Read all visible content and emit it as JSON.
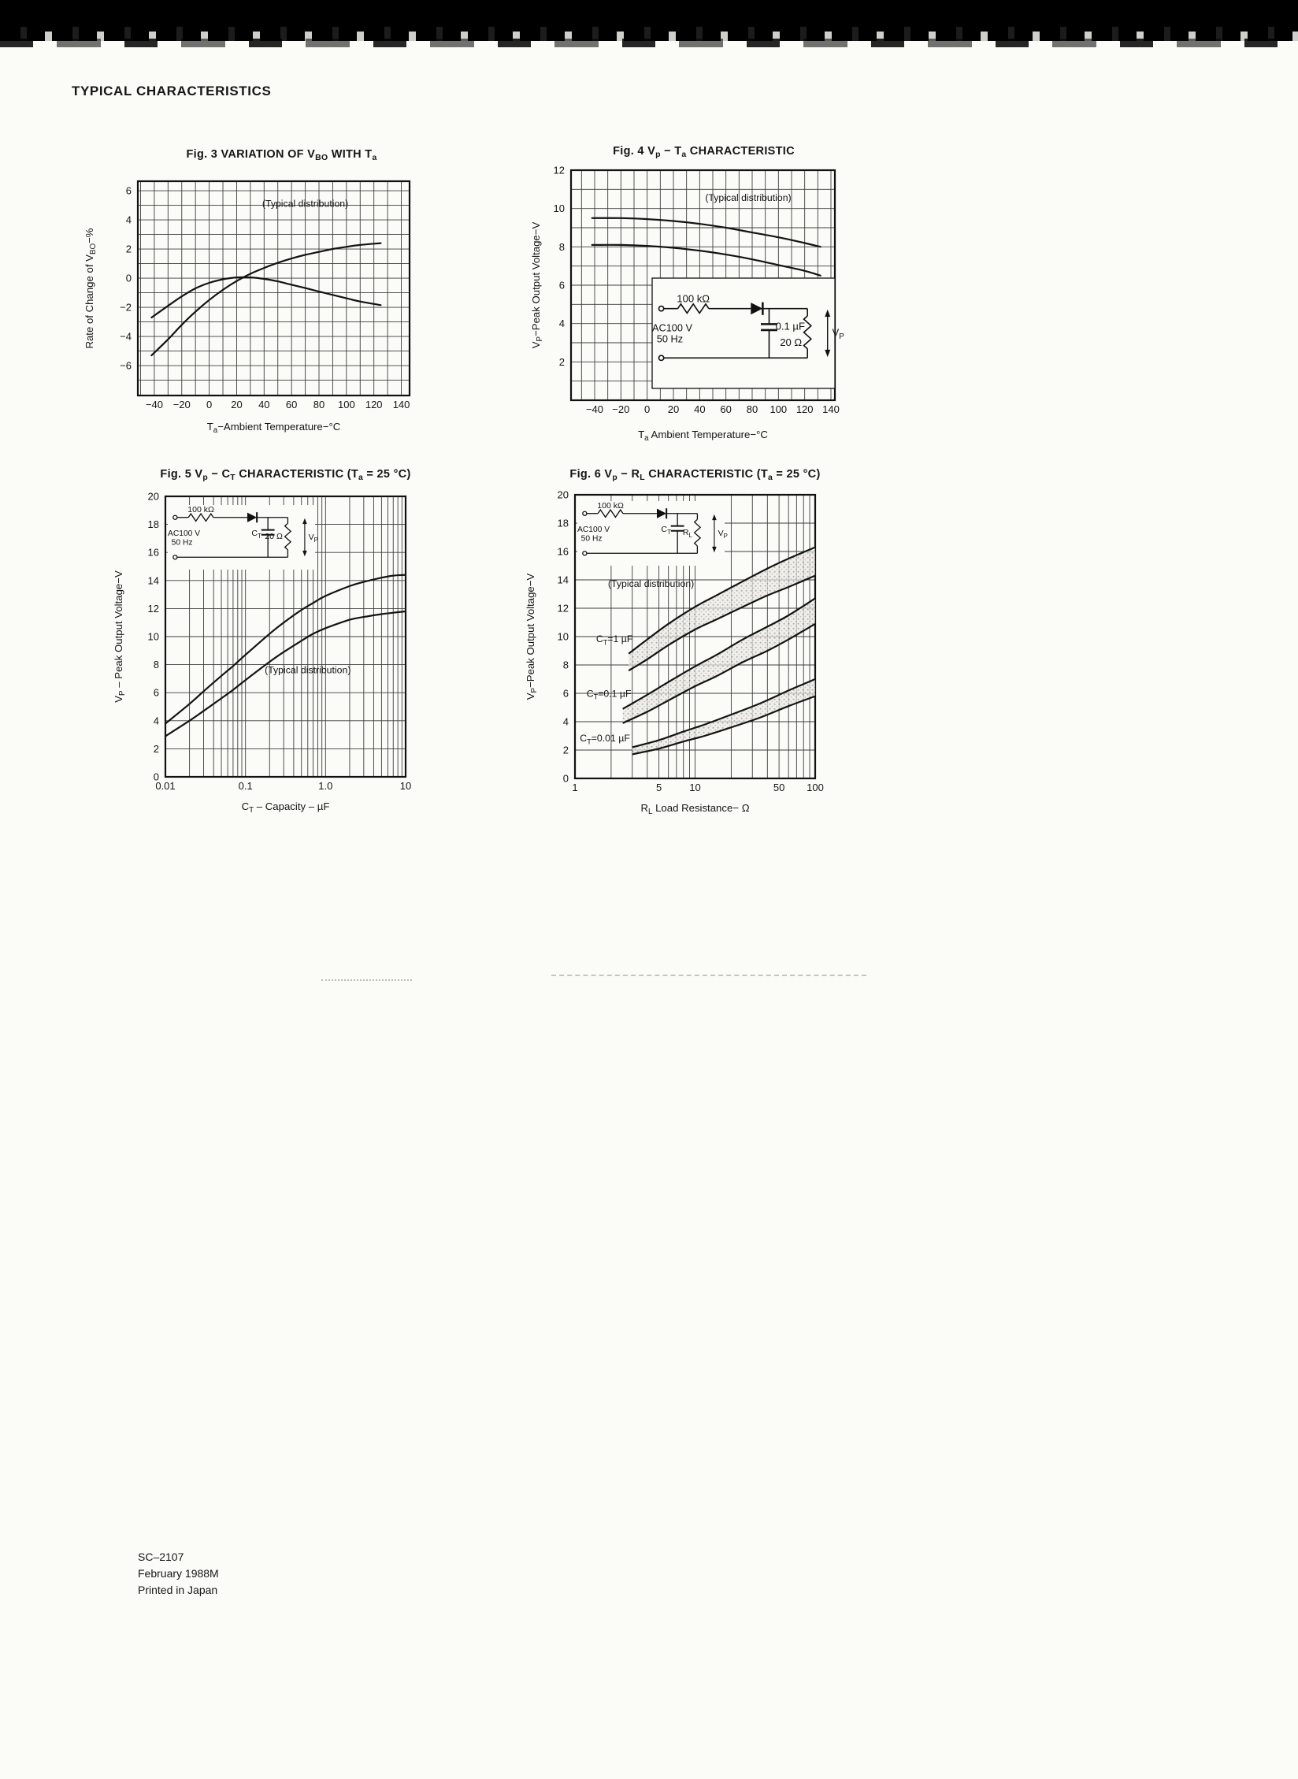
{
  "page": {
    "header": "TYPICAL CHARACTERISTICS",
    "footer_lines": [
      "SC–2107",
      "February 1988M",
      "Printed in Japan"
    ]
  },
  "chart_data": [
    {
      "id": "fig3",
      "type": "line",
      "title": "Fig. 3   VARIATION OF V~BO~ WITH T~a~",
      "xlabel": "T~a~−Ambient Temperature−°C",
      "ylabel": "Rate of Change of V~BO~−%",
      "x": {
        "scale": "linear",
        "min": -52,
        "max": 146,
        "minor_step": 10,
        "ticks": [
          {
            "v": -40,
            "label": "−40"
          },
          {
            "v": -20,
            "label": "−20"
          },
          {
            "v": 0,
            "label": "0"
          },
          {
            "v": 20,
            "label": "20"
          },
          {
            "v": 40,
            "label": "40"
          },
          {
            "v": 60,
            "label": "60"
          },
          {
            "v": 80,
            "label": "80"
          },
          {
            "v": 100,
            "label": "100"
          },
          {
            "v": 120,
            "label": "120"
          },
          {
            "v": 140,
            "label": "140"
          }
        ]
      },
      "y": {
        "min": -8.05,
        "max": 6.65,
        "grid_step": 1,
        "ticks": [
          {
            "v": 6,
            "label": "6"
          },
          {
            "v": 4,
            "label": "4"
          },
          {
            "v": 2,
            "label": "2"
          },
          {
            "v": 0,
            "label": "0"
          },
          {
            "v": -2,
            "label": "−2"
          },
          {
            "v": -4,
            "label": "−4"
          },
          {
            "v": -6,
            "label": "−6"
          }
        ]
      },
      "annotations": [
        {
          "text": "(Typical distribution)",
          "x": 70,
          "y": 4.9
        }
      ],
      "series": [
        {
          "name": "distribution-upper-rising",
          "points": [
            [
              -42,
              -5.3
            ],
            [
              -30,
              -4.2
            ],
            [
              -20,
              -3.2
            ],
            [
              -10,
              -2.3
            ],
            [
              0,
              -1.5
            ],
            [
              10,
              -0.8
            ],
            [
              20,
              -0.2
            ],
            [
              30,
              0.3
            ],
            [
              40,
              0.7
            ],
            [
              50,
              1.05
            ],
            [
              60,
              1.35
            ],
            [
              70,
              1.6
            ],
            [
              80,
              1.8
            ],
            [
              90,
              2.0
            ],
            [
              100,
              2.15
            ],
            [
              110,
              2.28
            ],
            [
              125,
              2.4
            ]
          ]
        },
        {
          "name": "distribution-lower-falling",
          "points": [
            [
              -42,
              -2.7
            ],
            [
              -30,
              -1.9
            ],
            [
              -20,
              -1.25
            ],
            [
              -10,
              -0.7
            ],
            [
              0,
              -0.32
            ],
            [
              10,
              -0.08
            ],
            [
              20,
              0.05
            ],
            [
              30,
              0.05
            ],
            [
              40,
              -0.05
            ],
            [
              50,
              -0.22
            ],
            [
              60,
              -0.45
            ],
            [
              70,
              -0.68
            ],
            [
              80,
              -0.92
            ],
            [
              90,
              -1.15
            ],
            [
              100,
              -1.38
            ],
            [
              110,
              -1.6
            ],
            [
              125,
              -1.85
            ]
          ]
        }
      ]
    },
    {
      "id": "fig4",
      "type": "line",
      "title": "Fig. 4   V~p~ − T~a~ CHARACTERISTIC",
      "xlabel": "T~a~   Ambient Temperature−°C",
      "ylabel": "V~P~−Peak Output Voltage−V",
      "x": {
        "scale": "linear",
        "min": -58,
        "max": 143,
        "minor_step": 10,
        "ticks": [
          {
            "v": -40,
            "label": "−40"
          },
          {
            "v": -20,
            "label": "−20"
          },
          {
            "v": 0,
            "label": "0"
          },
          {
            "v": 20,
            "label": "20"
          },
          {
            "v": 40,
            "label": "40"
          },
          {
            "v": 60,
            "label": "60"
          },
          {
            "v": 80,
            "label": "80"
          },
          {
            "v": 100,
            "label": "100"
          },
          {
            "v": 120,
            "label": "120"
          },
          {
            "v": 140,
            "label": "140"
          }
        ]
      },
      "y": {
        "min": 0,
        "max": 12,
        "grid_step": 1,
        "ticks": [
          {
            "v": 12,
            "label": "12"
          },
          {
            "v": 10,
            "label": "10"
          },
          {
            "v": 8,
            "label": "8"
          },
          {
            "v": 6,
            "label": "6"
          },
          {
            "v": 4,
            "label": "4"
          },
          {
            "v": 2,
            "label": "2"
          }
        ]
      },
      "annotations": [
        {
          "text": "(Typical distribution)",
          "x": 77,
          "y": 10.4
        }
      ],
      "series": [
        {
          "name": "distribution-upper",
          "points": [
            [
              -42,
              9.5
            ],
            [
              -20,
              9.5
            ],
            [
              0,
              9.45
            ],
            [
              20,
              9.35
            ],
            [
              40,
              9.2
            ],
            [
              60,
              9.0
            ],
            [
              80,
              8.75
            ],
            [
              100,
              8.5
            ],
            [
              120,
              8.2
            ],
            [
              132,
              8.0
            ]
          ]
        },
        {
          "name": "distribution-lower",
          "points": [
            [
              -42,
              8.1
            ],
            [
              -20,
              8.1
            ],
            [
              0,
              8.05
            ],
            [
              20,
              7.95
            ],
            [
              40,
              7.8
            ],
            [
              60,
              7.6
            ],
            [
              80,
              7.35
            ],
            [
              100,
              7.05
            ],
            [
              120,
              6.75
            ],
            [
              132,
              6.5
            ]
          ]
        }
      ],
      "inset": {
        "resistor": "100 kΩ",
        "source": [
          "AC100 V",
          "50 Hz"
        ],
        "capacitor": "0.1 µF",
        "load": "20 Ω",
        "output": "V~P~"
      }
    },
    {
      "id": "fig5",
      "type": "line",
      "title": "Fig. 5   V~p~ − C~T~ CHARACTERISTIC (T~a~ = 25 °C)",
      "xlabel": "C~T~ – Capacity – µF",
      "ylabel": "V~P~ – Peak Output Voltage−V",
      "x": {
        "scale": "log",
        "min": 0.01,
        "max": 10,
        "ticks": [
          {
            "v": 0.01,
            "label": "0.01"
          },
          {
            "v": 0.1,
            "label": "0.1"
          },
          {
            "v": 1,
            "label": "1.0"
          },
          {
            "v": 10,
            "label": "10"
          }
        ]
      },
      "y": {
        "min": 0,
        "max": 20,
        "grid_step": 2,
        "ticks": [
          {
            "v": 20,
            "label": "20"
          },
          {
            "v": 18,
            "label": "18"
          },
          {
            "v": 16,
            "label": "16"
          },
          {
            "v": 14,
            "label": "14"
          },
          {
            "v": 12,
            "label": "12"
          },
          {
            "v": 10,
            "label": "10"
          },
          {
            "v": 8,
            "label": "8"
          },
          {
            "v": 6,
            "label": "6"
          },
          {
            "v": 4,
            "label": "4"
          },
          {
            "v": 2,
            "label": "2"
          },
          {
            "v": 0,
            "label": "0"
          }
        ]
      },
      "annotations": [
        {
          "text": "(Typical distribution)",
          "x": 0.6,
          "y": 7.4
        }
      ],
      "series": [
        {
          "name": "distribution-upper",
          "points": [
            [
              0.01,
              3.8
            ],
            [
              0.02,
              5.2
            ],
            [
              0.03,
              6.1
            ],
            [
              0.05,
              7.2
            ],
            [
              0.07,
              7.9
            ],
            [
              0.1,
              8.7
            ],
            [
              0.2,
              10.2
            ],
            [
              0.3,
              11.0
            ],
            [
              0.5,
              11.9
            ],
            [
              0.7,
              12.4
            ],
            [
              1,
              12.9
            ],
            [
              2,
              13.6
            ],
            [
              3,
              13.9
            ],
            [
              5,
              14.2
            ],
            [
              7,
              14.35
            ],
            [
              10,
              14.4
            ]
          ]
        },
        {
          "name": "distribution-lower",
          "points": [
            [
              0.01,
              2.9
            ],
            [
              0.02,
              4.0
            ],
            [
              0.03,
              4.7
            ],
            [
              0.05,
              5.6
            ],
            [
              0.07,
              6.2
            ],
            [
              0.1,
              6.9
            ],
            [
              0.2,
              8.2
            ],
            [
              0.3,
              8.9
            ],
            [
              0.5,
              9.7
            ],
            [
              0.7,
              10.2
            ],
            [
              1,
              10.6
            ],
            [
              2,
              11.2
            ],
            [
              3,
              11.4
            ],
            [
              5,
              11.6
            ],
            [
              7,
              11.7
            ],
            [
              10,
              11.8
            ]
          ]
        }
      ],
      "inset": {
        "resistor": "100 kΩ",
        "source": [
          "AC100 V",
          "50 Hz"
        ],
        "capacitor": "C~T~",
        "load": "20 Ω",
        "output": "V~P~"
      }
    },
    {
      "id": "fig6",
      "type": "line",
      "title": "Fig. 6   V~p~ − R~L~ CHARACTERISTIC (T~a~ = 25 °C)",
      "xlabel": "R~L~   Load Resistance− Ω",
      "ylabel": "V~P~−Peak Output Voltage−V",
      "x": {
        "scale": "log",
        "min": 1,
        "max": 100,
        "ticks": [
          {
            "v": 1,
            "label": "1"
          },
          {
            "v": 5,
            "label": "5"
          },
          {
            "v": 10,
            "label": "10"
          },
          {
            "v": 50,
            "label": "50"
          },
          {
            "v": 100,
            "label": "100"
          }
        ]
      },
      "y": {
        "min": 0,
        "max": 20,
        "grid_step": 2,
        "ticks": [
          {
            "v": 20,
            "label": "20"
          },
          {
            "v": 18,
            "label": "18"
          },
          {
            "v": 16,
            "label": "16"
          },
          {
            "v": 14,
            "label": "14"
          },
          {
            "v": 12,
            "label": "12"
          },
          {
            "v": 10,
            "label": "10"
          },
          {
            "v": 8,
            "label": "8"
          },
          {
            "v": 6,
            "label": "6"
          },
          {
            "v": 4,
            "label": "4"
          },
          {
            "v": 2,
            "label": "2"
          },
          {
            "v": 0,
            "label": "0"
          }
        ]
      },
      "annotations": [
        {
          "text": "(Typical distribution)",
          "x": 4.3,
          "y": 13.5
        }
      ],
      "bands": [
        {
          "label": "C~T~=1 µF",
          "label_x": 1.5,
          "label_y": 9.6,
          "upper": [
            [
              2.8,
              8.8
            ],
            [
              4,
              9.8
            ],
            [
              6,
              10.9
            ],
            [
              10,
              12.1
            ],
            [
              15,
              12.9
            ],
            [
              25,
              13.9
            ],
            [
              40,
              14.8
            ],
            [
              60,
              15.5
            ],
            [
              100,
              16.3
            ]
          ],
          "lower": [
            [
              2.8,
              7.6
            ],
            [
              4,
              8.4
            ],
            [
              6,
              9.4
            ],
            [
              10,
              10.5
            ],
            [
              15,
              11.2
            ],
            [
              25,
              12.1
            ],
            [
              40,
              12.9
            ],
            [
              60,
              13.5
            ],
            [
              100,
              14.3
            ]
          ]
        },
        {
          "label": "C~T~=0.1 µF",
          "label_x": 1.25,
          "label_y": 5.75,
          "upper": [
            [
              2.5,
              4.9
            ],
            [
              4,
              5.9
            ],
            [
              6,
              6.8
            ],
            [
              10,
              7.9
            ],
            [
              15,
              8.7
            ],
            [
              25,
              9.8
            ],
            [
              40,
              10.7
            ],
            [
              60,
              11.5
            ],
            [
              100,
              12.7
            ]
          ],
          "lower": [
            [
              2.5,
              3.9
            ],
            [
              4,
              4.7
            ],
            [
              6,
              5.5
            ],
            [
              10,
              6.5
            ],
            [
              15,
              7.2
            ],
            [
              25,
              8.2
            ],
            [
              40,
              9.0
            ],
            [
              60,
              9.8
            ],
            [
              100,
              10.9
            ]
          ]
        },
        {
          "label": "C~T~=0.01 µF",
          "label_x": 1.1,
          "label_y": 2.6,
          "upper": [
            [
              3,
              2.2
            ],
            [
              5,
              2.7
            ],
            [
              8,
              3.3
            ],
            [
              12,
              3.8
            ],
            [
              20,
              4.5
            ],
            [
              35,
              5.3
            ],
            [
              60,
              6.2
            ],
            [
              100,
              7.0
            ]
          ],
          "lower": [
            [
              3,
              1.7
            ],
            [
              5,
              2.1
            ],
            [
              8,
              2.6
            ],
            [
              12,
              3.0
            ],
            [
              20,
              3.6
            ],
            [
              35,
              4.3
            ],
            [
              60,
              5.1
            ],
            [
              100,
              5.8
            ]
          ]
        }
      ],
      "inset": {
        "resistor": "100 kΩ",
        "source": [
          "AC100 V",
          "50 Hz"
        ],
        "capacitor": "C~T~",
        "load": "R~L~",
        "output": "V~P~"
      }
    }
  ]
}
